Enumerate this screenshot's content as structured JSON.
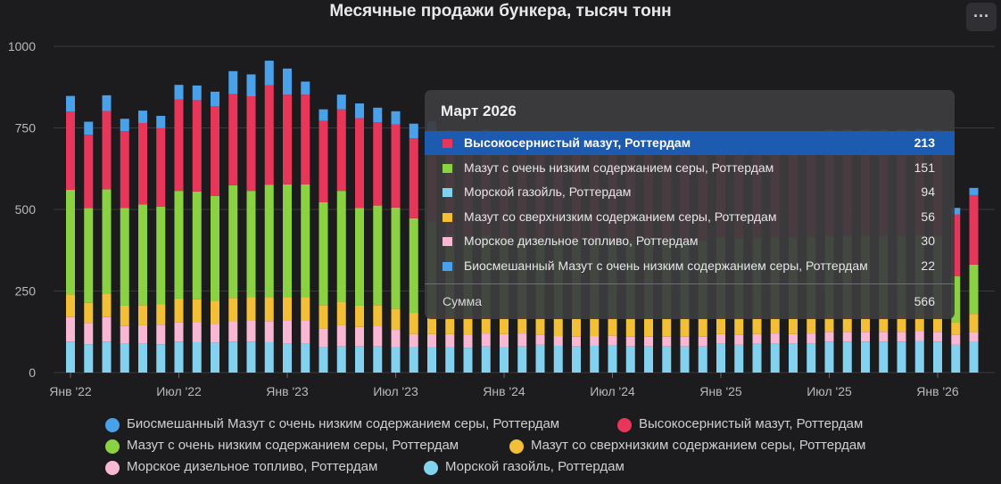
{
  "colors": {
    "high_sulfur": "#e8365b",
    "vlsfo": "#8bd243",
    "gasoil": "#82d2ef",
    "ulsfo": "#f2bf36",
    "diesel": "#f8b7d2",
    "bio": "#49a1ea",
    "grid": "#3a3a3e",
    "background": "#1c1c1f"
  },
  "header": {
    "menu_icon": "ellipsis-icon",
    "menu_label": "···"
  },
  "chart_data": {
    "type": "bar",
    "stacked": true,
    "title": "Месячные продажи бункера, тысяч тонн",
    "xlabel": "",
    "ylabel": "",
    "ylim": [
      0,
      1000
    ],
    "yticks": [
      0,
      250,
      500,
      750,
      1000
    ],
    "x_tick_labels": [
      "Янв '22",
      "Июл '22",
      "Янв '23",
      "Июл '23",
      "Янв '24",
      "Июл '24",
      "Янв '25",
      "Июл '25",
      "Янв '26"
    ],
    "grid": true,
    "legend_position": "bottom",
    "categories": [
      "2022-01",
      "2022-02",
      "2022-03",
      "2022-04",
      "2022-05",
      "2022-06",
      "2022-07",
      "2022-08",
      "2022-09",
      "2022-10",
      "2022-11",
      "2022-12",
      "2023-01",
      "2023-02",
      "2023-03",
      "2023-04",
      "2023-05",
      "2023-06",
      "2023-07",
      "2023-08",
      "2023-09",
      "2023-10",
      "2023-11",
      "2023-12",
      "2024-01",
      "2024-02",
      "2024-03",
      "2024-04",
      "2024-05",
      "2024-06",
      "2024-07",
      "2024-08",
      "2024-09",
      "2024-10",
      "2024-11",
      "2024-12",
      "2025-01",
      "2025-02",
      "2025-03",
      "2025-04",
      "2025-05",
      "2025-06",
      "2025-07",
      "2025-08",
      "2025-09",
      "2025-10",
      "2025-11",
      "2025-12",
      "2026-01",
      "2026-02",
      "2026-03"
    ],
    "series": [
      {
        "name": "Морской газойль, Роттердам",
        "color_key": "gasoil",
        "values": [
          95,
          87,
          95,
          88,
          90,
          87,
          95,
          93,
          92,
          95,
          95,
          93,
          90,
          88,
          77,
          80,
          80,
          80,
          78,
          78,
          78,
          78,
          76,
          80,
          78,
          80,
          85,
          82,
          80,
          82,
          83,
          80,
          80,
          80,
          80,
          80,
          88,
          85,
          88,
          90,
          88,
          90,
          95,
          95,
          95,
          95,
          95,
          97,
          95,
          85,
          94
        ]
      },
      {
        "name": "Морское дизельное топливо, Роттердам",
        "color_key": "diesel",
        "values": [
          75,
          65,
          75,
          55,
          55,
          60,
          60,
          60,
          57,
          62,
          65,
          65,
          70,
          72,
          58,
          65,
          60,
          62,
          53,
          40,
          40,
          40,
          40,
          40,
          40,
          40,
          30,
          30,
          30,
          30,
          30,
          30,
          30,
          30,
          30,
          30,
          30,
          30,
          30,
          30,
          30,
          30,
          30,
          30,
          30,
          30,
          30,
          30,
          30,
          30,
          30
        ]
      },
      {
        "name": "Мазут со сверхнизким содержанием серы, Роттердам",
        "color_key": "ulsfo",
        "values": [
          70,
          62,
          72,
          62,
          62,
          62,
          72,
          72,
          72,
          72,
          72,
          73,
          72,
          72,
          72,
          72,
          65,
          65,
          65,
          65,
          70,
          60,
          60,
          60,
          55,
          55,
          55,
          55,
          55,
          55,
          55,
          55,
          55,
          55,
          55,
          55,
          55,
          55,
          55,
          55,
          55,
          55,
          55,
          55,
          55,
          55,
          55,
          55,
          55,
          40,
          56
        ]
      },
      {
        "name": "Мазут с очень низким содержанием серы, Роттердам",
        "color_key": "vlsfo",
        "values": [
          320,
          290,
          320,
          300,
          308,
          300,
          330,
          330,
          320,
          345,
          325,
          345,
          345,
          345,
          315,
          340,
          300,
          305,
          310,
          290,
          275,
          245,
          240,
          240,
          240,
          240,
          240,
          240,
          240,
          240,
          240,
          240,
          240,
          240,
          240,
          240,
          240,
          240,
          240,
          240,
          240,
          240,
          240,
          240,
          240,
          240,
          240,
          240,
          240,
          140,
          151
        ]
      },
      {
        "name": "Высокосернистый мазут, Роттердам",
        "color_key": "high_sulfur",
        "values": [
          240,
          225,
          240,
          235,
          250,
          240,
          280,
          280,
          275,
          280,
          290,
          305,
          275,
          275,
          250,
          250,
          275,
          255,
          255,
          245,
          262,
          275,
          280,
          280,
          280,
          280,
          280,
          280,
          280,
          280,
          280,
          280,
          280,
          280,
          280,
          280,
          280,
          280,
          280,
          280,
          280,
          280,
          280,
          280,
          280,
          280,
          280,
          280,
          280,
          190,
          213
        ]
      },
      {
        "name": "Биосмешанный Мазут с очень низким содержанием серы, Роттердам",
        "color_key": "bio",
        "values": [
          48,
          40,
          48,
          38,
          38,
          38,
          45,
          45,
          45,
          70,
          67,
          75,
          80,
          40,
          35,
          45,
          45,
          45,
          40,
          45,
          45,
          45,
          45,
          45,
          45,
          45,
          45,
          45,
          45,
          45,
          45,
          45,
          45,
          45,
          45,
          45,
          45,
          45,
          45,
          45,
          45,
          45,
          45,
          45,
          45,
          45,
          45,
          45,
          45,
          20,
          22
        ]
      }
    ]
  },
  "tooltip": {
    "title": "Март 2026",
    "rows": [
      {
        "label": "Высокосернистый мазут, Роттердам",
        "value": "213",
        "color_key": "high_sulfur",
        "active": true
      },
      {
        "label": "Мазут с очень низким содержанием серы, Роттердам",
        "value": "151",
        "color_key": "vlsfo",
        "active": false
      },
      {
        "label": "Морской газойль, Роттердам",
        "value": "94",
        "color_key": "gasoil",
        "active": false
      },
      {
        "label": "Мазут со сверхнизким содержанием серы, Роттердам",
        "value": "56",
        "color_key": "ulsfo",
        "active": false
      },
      {
        "label": "Морское дизельное топливо, Роттердам",
        "value": "30",
        "color_key": "diesel",
        "active": false
      },
      {
        "label": "Биосмешанный Мазут с очень низким содержанием серы, Роттердам",
        "value": "22",
        "color_key": "bio",
        "active": false
      }
    ],
    "sum_label": "Сумма",
    "sum_value": "566"
  },
  "legend": {
    "items": [
      {
        "label": "Биосмешанный Мазут с очень низким содержанием серы, Роттердам",
        "color_key": "bio"
      },
      {
        "label": "Высокосернистый мазут, Роттердам",
        "color_key": "high_sulfur"
      },
      {
        "label": "Мазут с очень низким содержанием серы, Роттердам",
        "color_key": "vlsfo"
      },
      {
        "label": "Мазут со сверхнизким содержанием серы, Роттердам",
        "color_key": "ulsfo"
      },
      {
        "label": "Морское дизельное топливо, Роттердам",
        "color_key": "diesel"
      },
      {
        "label": "Морской газойль, Роттердам",
        "color_key": "gasoil"
      }
    ]
  }
}
